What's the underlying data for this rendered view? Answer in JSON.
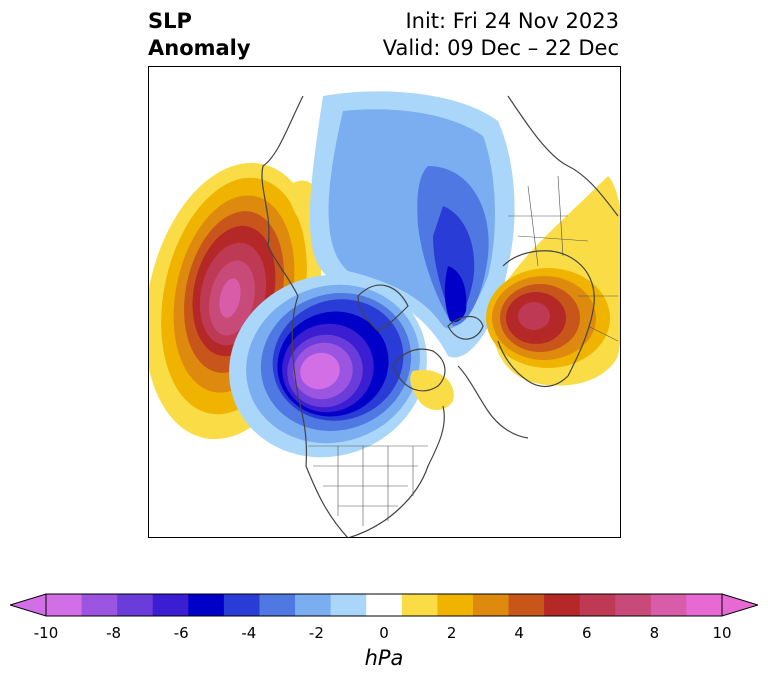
{
  "title": {
    "left_line1": "SLP",
    "left_line2": "Anomaly",
    "right_line1": "Init: Fri 24 Nov 2023",
    "right_line2": "Valid: 09 Dec – 22 Dec"
  },
  "colorbar": {
    "unit": "hPa",
    "ticks": [
      "-10",
      "-8",
      "-6",
      "-4",
      "-2",
      "0",
      "2",
      "4",
      "6",
      "8",
      "10"
    ],
    "levels": [
      -10,
      -9,
      -8,
      -7,
      -6,
      -5,
      -4,
      -3,
      -2,
      -1,
      1,
      2,
      3,
      4,
      5,
      6,
      7,
      8,
      9,
      10
    ],
    "colors": [
      "#d26ee6",
      "#9b55e0",
      "#6a3cd9",
      "#3c1ed2",
      "#0000c8",
      "#2a3cd6",
      "#4f78e3",
      "#7aaef0",
      "#aad6fa",
      "#ffffff",
      "#fadd46",
      "#f0b400",
      "#de8a0e",
      "#c8561a",
      "#b42828",
      "#be3a54",
      "#c84a78",
      "#d85ca8",
      "#e76ad4"
    ],
    "under_color": "#d26ee6",
    "over_color": "#e76ad4"
  },
  "map": {
    "projection": "north-polar-stereographic",
    "anomalies": [
      {
        "region": "North Pacific / Gulf of Alaska",
        "sign": "positive",
        "peak_hPa": 9
      },
      {
        "region": "Northern Canada / Hudson Bay",
        "sign": "negative",
        "peak_hPa": -10
      },
      {
        "region": "Arctic / Siberia",
        "sign": "negative",
        "peak_hPa": -6
      },
      {
        "region": "Northern Europe / Scandinavia",
        "sign": "positive",
        "peak_hPa": 6
      },
      {
        "region": "Greenland",
        "sign": "positive",
        "peak_hPa": 2
      }
    ]
  }
}
